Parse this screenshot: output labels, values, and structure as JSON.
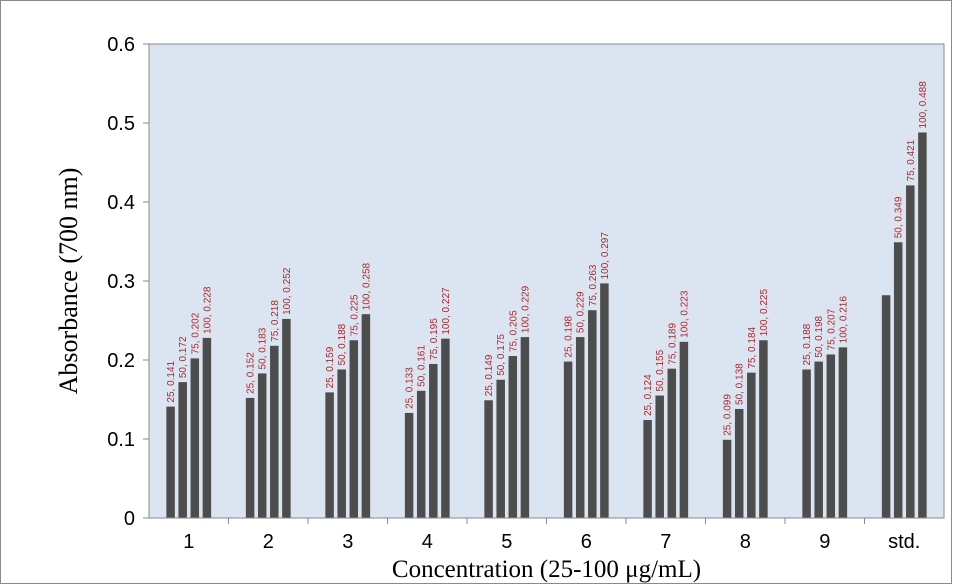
{
  "chart_data": {
    "type": "bar",
    "title": "",
    "xlabel": "Concentration (25-100 μg/mL)",
    "ylabel": "Absorbance (700 nm)",
    "ylim": [
      0,
      0.6
    ],
    "yticks": [
      "0",
      "0.1",
      "0.2",
      "0.3",
      "0.4",
      "0.5",
      "0.6"
    ],
    "grid": false,
    "legend": "none",
    "colors": {
      "plot_bg": "#dbe5f1",
      "bar": "#4d4d4d",
      "label": "#b0262a",
      "axis": "#8a8a8a"
    },
    "categories": [
      "1",
      "2",
      "3",
      "4",
      "5",
      "6",
      "7",
      "8",
      "9",
      "std."
    ],
    "values": [
      [
        0.141,
        0.172,
        0.202,
        0.228
      ],
      [
        0.152,
        0.183,
        0.218,
        0.252
      ],
      [
        0.159,
        0.188,
        0.225,
        0.258
      ],
      [
        0.133,
        0.161,
        0.195,
        0.227
      ],
      [
        0.149,
        0.175,
        0.205,
        0.229
      ],
      [
        0.198,
        0.229,
        0.263,
        0.297
      ],
      [
        0.124,
        0.155,
        0.189,
        0.223
      ],
      [
        0.099,
        0.138,
        0.184,
        0.225
      ],
      [
        0.188,
        0.198,
        0.207,
        0.216
      ],
      [
        0.282,
        0.349,
        0.421,
        0.488
      ]
    ],
    "data_labels": [
      [
        "25, 0.141",
        "50, 0.172",
        "75, 0.202",
        "100, 0.228"
      ],
      [
        "25, 0.152",
        "50, 0.183",
        "75, 0.218",
        "100, 0.252"
      ],
      [
        "25, 0.159",
        "50, 0.188",
        "75, 0.225",
        "100, 0.258"
      ],
      [
        "25, 0.133",
        "50, 0.161",
        "75, 0.195",
        "100, 0.227"
      ],
      [
        "25, 0.149",
        "50, 0.175",
        "75, 0.205",
        "100, 0.229"
      ],
      [
        "25, 0.198",
        "50, 0.229",
        "75, 0.263",
        "100, 0.297"
      ],
      [
        "25, 0.124",
        "50, 0.155",
        "75, 0.189",
        "100, 0.223"
      ],
      [
        "25, 0.099",
        "50, 0.138",
        "75, 0.184",
        "100, 0.225"
      ],
      [
        "25, 0.188",
        "50, 0.198",
        "75, 0.207",
        "100, 0.216"
      ],
      [
        "",
        "50, 0.349",
        "75, 0.421",
        "100, 0.488"
      ]
    ]
  }
}
